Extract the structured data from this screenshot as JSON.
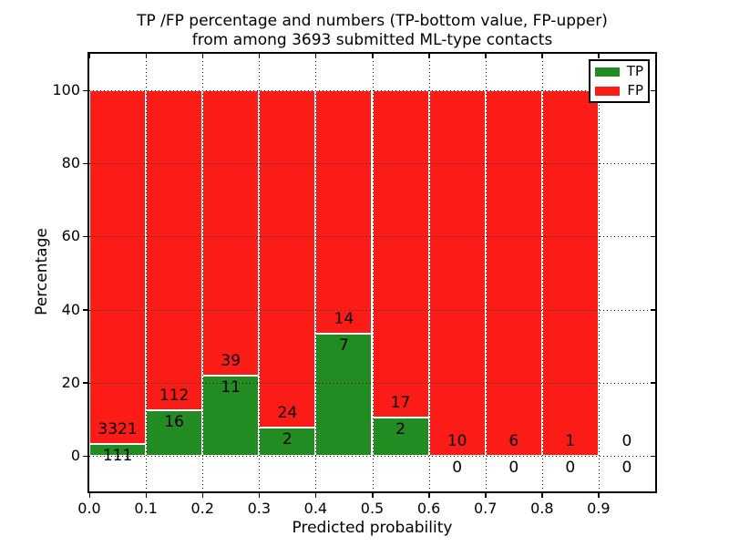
{
  "title": {
    "line1": "TP /FP percentage and numbers (TP-bottom value, FP-upper)",
    "line2": "from among 3693 submitted ML-type contacts"
  },
  "axes": {
    "xlabel": "Predicted probability",
    "ylabel": "Percentage",
    "xtick_labels": [
      "0.0",
      "0.1",
      "0.2",
      "0.3",
      "0.4",
      "0.5",
      "0.6",
      "0.7",
      "0.8",
      "0.9"
    ],
    "ytick_labels": [
      "0",
      "20",
      "40",
      "60",
      "80",
      "100"
    ],
    "ytick_values": [
      0,
      20,
      40,
      60,
      80,
      100
    ]
  },
  "legend": {
    "items": [
      {
        "label": "TP",
        "color": "#228b22"
      },
      {
        "label": "FP",
        "color": "#fb1b17"
      }
    ]
  },
  "chart_data": {
    "type": "bar",
    "stacked": true,
    "normalized_to_percent": true,
    "title": "TP /FP percentage and numbers (TP-bottom value, FP-upper) from among 3693 submitted ML-type contacts",
    "xlabel": "Predicted probability",
    "ylabel": "Percentage",
    "xlim": [
      0.0,
      1.0
    ],
    "ylim": [
      -10,
      110
    ],
    "grid": true,
    "legend_position": "upper right",
    "total_submitted": 3693,
    "bin_width": 0.1,
    "bin_starts": [
      0.0,
      0.1,
      0.2,
      0.3,
      0.4,
      0.5,
      0.6,
      0.7,
      0.8,
      0.9
    ],
    "series": [
      {
        "name": "TP",
        "color": "#228b22",
        "counts": [
          111,
          16,
          11,
          2,
          7,
          2,
          0,
          0,
          0,
          0
        ]
      },
      {
        "name": "FP",
        "color": "#fb1b17",
        "counts": [
          3321,
          112,
          39,
          24,
          14,
          17,
          10,
          6,
          1,
          0
        ]
      }
    ]
  }
}
